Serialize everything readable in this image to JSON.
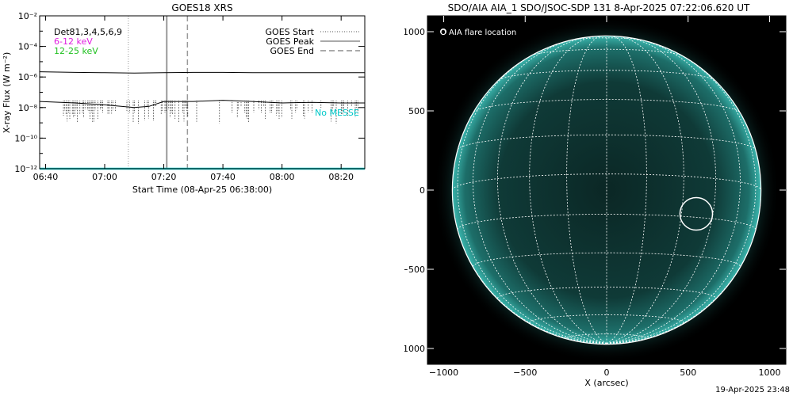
{
  "footer": {
    "timestamp": "19-Apr-2025 23:48"
  },
  "chart_data": [
    {
      "type": "line",
      "title": "GOES18 XRS",
      "xlabel": "Start Time (08-Apr-25 06:38:00)",
      "ylabel": "X-ray Flux (W m⁻²)",
      "ylog": true,
      "xlim": [
        "06:38",
        "08:28"
      ],
      "ylim": [
        1e-12,
        0.01
      ],
      "x_ticks": [
        "06:40",
        "07:00",
        "07:20",
        "07:40",
        "08:00",
        "08:20"
      ],
      "y_ticks": [
        "10⁻¹²",
        "10⁻¹⁰",
        "10⁻⁸",
        "10⁻⁶",
        "10⁻⁴",
        "10⁻²"
      ],
      "legend_left": [
        {
          "name": "Det81,3,4,5,6,9",
          "color": "#000000"
        },
        {
          "name": "6-12 keV",
          "color": "#e020e0"
        },
        {
          "name": "12-25 keV",
          "color": "#20c020"
        }
      ],
      "legend_right": [
        {
          "name": "GOES Start",
          "style": "dotted"
        },
        {
          "name": "GOES Peak",
          "style": "solid"
        },
        {
          "name": "GOES End",
          "style": "dashed"
        }
      ],
      "edge_label": "No MESSE",
      "markers": {
        "goes_start": "07:08",
        "goes_peak": "07:21",
        "goes_end": "07:28"
      },
      "series": [
        {
          "name": "",
          "color": "#000000",
          "x": [
            "06:38",
            "06:50",
            "07:00",
            "07:10",
            "07:20",
            "07:30",
            "07:40",
            "07:50",
            "08:00",
            "08:10",
            "08:20",
            "08:28"
          ],
          "y": [
            2.2e-06,
            2e-06,
            1.9e-06,
            1.8e-06,
            1.9e-06,
            2e-06,
            2e-06,
            1.9e-06,
            1.9e-06,
            1.9e-06,
            1.9e-06,
            1.9e-06
          ]
        },
        {
          "name": "",
          "color": "#000000",
          "x": [
            "06:38",
            "06:50",
            "07:00",
            "07:10",
            "07:15",
            "07:20",
            "07:30",
            "07:40",
            "07:50",
            "08:00",
            "08:10",
            "08:20",
            "08:28"
          ],
          "y": [
            2.5e-08,
            2e-08,
            1.5e-08,
            1e-08,
            1.2e-08,
            2.5e-08,
            2.5e-08,
            3e-08,
            2.5e-08,
            2e-08,
            2.2e-08,
            2e-08,
            2e-08
          ]
        },
        {
          "name": "",
          "color": "#00d0d0",
          "x": [
            "06:38",
            "08:28"
          ],
          "y": [
            1e-12,
            1e-12
          ]
        }
      ]
    },
    {
      "type": "image",
      "title": "SDO/AIA AIA_1 SDO/JSOC-SDP 131  8-Apr-2025 07:22:06.620 UT",
      "xlabel": "X (arcsec)",
      "ylabel": "",
      "xlim": [
        -1100,
        1100
      ],
      "ylim": [
        -1100,
        1100
      ],
      "x_ticks": [
        "−1000",
        "−500",
        "0",
        "500",
        "1000"
      ],
      "y_ticks": [
        "−1000",
        "−500",
        "0",
        "500",
        "1000"
      ],
      "legend": "O AIA flare location",
      "flare_location": {
        "x": 550,
        "y": -150,
        "radius": 100
      },
      "solar_radius": 960
    }
  ]
}
